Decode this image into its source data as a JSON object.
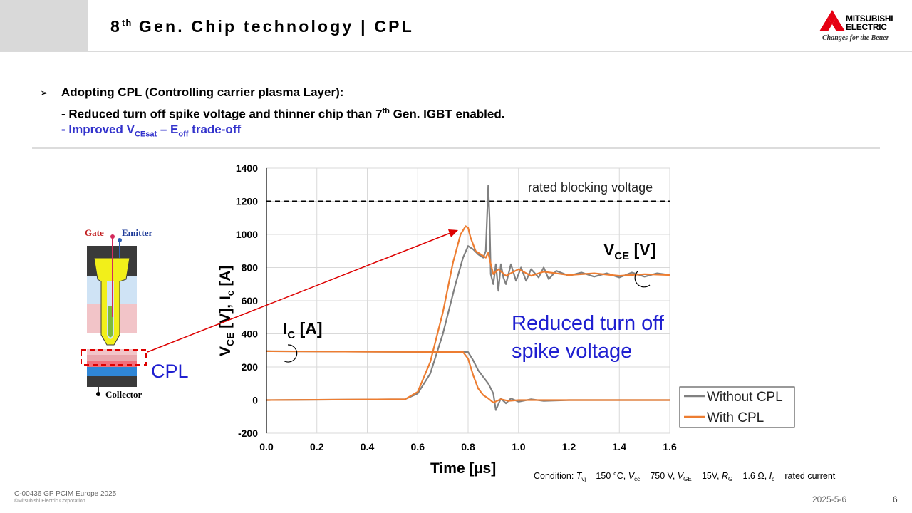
{
  "header": {
    "title_pre": "8",
    "title_sup": "th",
    "title_post": " Gen. Chip technology | CPL",
    "logo_line1": "MITSUBISHI",
    "logo_line2": "ELECTRIC",
    "slogan": "Changes for the Better"
  },
  "bullets": {
    "line1": "Adopting CPL (Controlling carrier plasma Layer):",
    "line2_pre": "- Reduced turn off spike voltage and thinner chip than 7",
    "line2_sup": "th",
    "line2_post": " Gen. IGBT enabled.",
    "line3_a": "- Improved V",
    "line3_sub1": "CEsat",
    "line3_b": " – E",
    "line3_sub2": "off",
    "line3_c": " trade-off"
  },
  "diagram": {
    "gate_label": "Gate",
    "emitter_label": "Emitter",
    "collector_label": "Collector",
    "cpl_label": "CPL"
  },
  "chart_data": {
    "type": "line",
    "x_label": "Time [µs]",
    "y_label_main": "V",
    "y_label_sub1": "CE",
    "y_label_mid": " [V], I",
    "y_label_sub2": "c",
    "y_label_end": " [A]",
    "xlim": [
      0.0,
      1.6
    ],
    "ylim": [
      -200,
      1400
    ],
    "x_ticks": [
      "0.0",
      "0.2",
      "0.4",
      "0.6",
      "0.8",
      "1.0",
      "1.2",
      "1.4",
      "1.6"
    ],
    "y_ticks": [
      "-200",
      "0",
      "200",
      "400",
      "600",
      "800",
      "1000",
      "1200",
      "1400"
    ],
    "grid": true,
    "reference_line": {
      "value": 1200,
      "label": "rated blocking voltage"
    },
    "annotations": {
      "vce_main": "V",
      "vce_sub": "CE",
      "vce_end": " [V]",
      "ic_main": "I",
      "ic_sub": "C",
      "ic_end": " [A]",
      "reduced_line1": "Reduced turn off",
      "reduced_line2": "spike voltage"
    },
    "legend": {
      "position": "right",
      "entries": [
        "Without CPL",
        "With CPL"
      ]
    },
    "colors": {
      "without": "#808080",
      "with": "#ed7d31",
      "arrow": "#dd0000",
      "annotation": "#1f1fd0"
    },
    "series": [
      {
        "name": "Without CPL",
        "id": "vce_without",
        "x": [
          0.0,
          0.55,
          0.6,
          0.65,
          0.7,
          0.75,
          0.78,
          0.8,
          0.82,
          0.84,
          0.86,
          0.87,
          0.88,
          0.885,
          0.89,
          0.9,
          0.91,
          0.92,
          0.93,
          0.94,
          0.95,
          0.97,
          0.99,
          1.01,
          1.03,
          1.05,
          1.08,
          1.1,
          1.12,
          1.15,
          1.2,
          1.25,
          1.3,
          1.35,
          1.4,
          1.45,
          1.5,
          1.55,
          1.6
        ],
        "y": [
          0,
          5,
          40,
          160,
          400,
          700,
          860,
          930,
          910,
          880,
          860,
          900,
          1295,
          1100,
          760,
          700,
          820,
          660,
          820,
          740,
          700,
          820,
          720,
          800,
          720,
          790,
          740,
          800,
          730,
          780,
          750,
          770,
          745,
          765,
          740,
          770,
          745,
          765,
          755
        ]
      },
      {
        "name": "With CPL",
        "id": "vce_with",
        "x": [
          0.0,
          0.55,
          0.6,
          0.65,
          0.7,
          0.74,
          0.77,
          0.79,
          0.8,
          0.81,
          0.83,
          0.85,
          0.87,
          0.88,
          0.89,
          0.9,
          0.92,
          0.95,
          1.0,
          1.05,
          1.1,
          1.2,
          1.3,
          1.4,
          1.5,
          1.6
        ],
        "y": [
          0,
          5,
          50,
          230,
          530,
          830,
          1000,
          1050,
          1040,
          980,
          900,
          880,
          860,
          890,
          820,
          760,
          790,
          750,
          790,
          750,
          775,
          755,
          765,
          750,
          760,
          755
        ]
      },
      {
        "name": "Without CPL",
        "id": "ic_without",
        "x": [
          0.0,
          0.8,
          0.82,
          0.84,
          0.86,
          0.88,
          0.9,
          0.91,
          0.93,
          0.95,
          0.97,
          1.0,
          1.05,
          1.1,
          1.2,
          1.3,
          1.4,
          1.5,
          1.6
        ],
        "y": [
          295,
          290,
          240,
          180,
          140,
          100,
          40,
          -60,
          10,
          -20,
          10,
          -10,
          5,
          -5,
          0,
          0,
          0,
          0,
          0
        ]
      },
      {
        "name": "With CPL",
        "id": "ic_with",
        "x": [
          0.0,
          0.78,
          0.8,
          0.82,
          0.84,
          0.86,
          0.88,
          0.9,
          0.93,
          0.96,
          1.0,
          1.05,
          1.1,
          1.2,
          1.3,
          1.4,
          1.5,
          1.6
        ],
        "y": [
          295,
          290,
          250,
          150,
          70,
          30,
          10,
          -15,
          5,
          -5,
          0,
          0,
          0,
          0,
          0,
          0,
          0,
          0
        ]
      }
    ],
    "condition": {
      "prefix": "Condition: ",
      "tvj_t": "T",
      "tvj_sub": "vj",
      "tvj_val": " = 150 °C, ",
      "vcc_t": "V",
      "vcc_sub": "cc",
      "vcc_val": " = 750 V, ",
      "vge_t": "V",
      "vge_sub": "GE",
      "vge_val": " = 15V, ",
      "rg_t": "R",
      "rg_sub": "G",
      "rg_val": " = 1.6 Ω, ",
      "ic_t": "I",
      "ic_sub": "c",
      "ic_val": " = rated current"
    }
  },
  "footer": {
    "doc_id": "C-00436 GP PCIM Europe 2025",
    "copyright": "©Mitsubishi Electric Corporation",
    "date": "2025-5-6",
    "page": "6"
  }
}
